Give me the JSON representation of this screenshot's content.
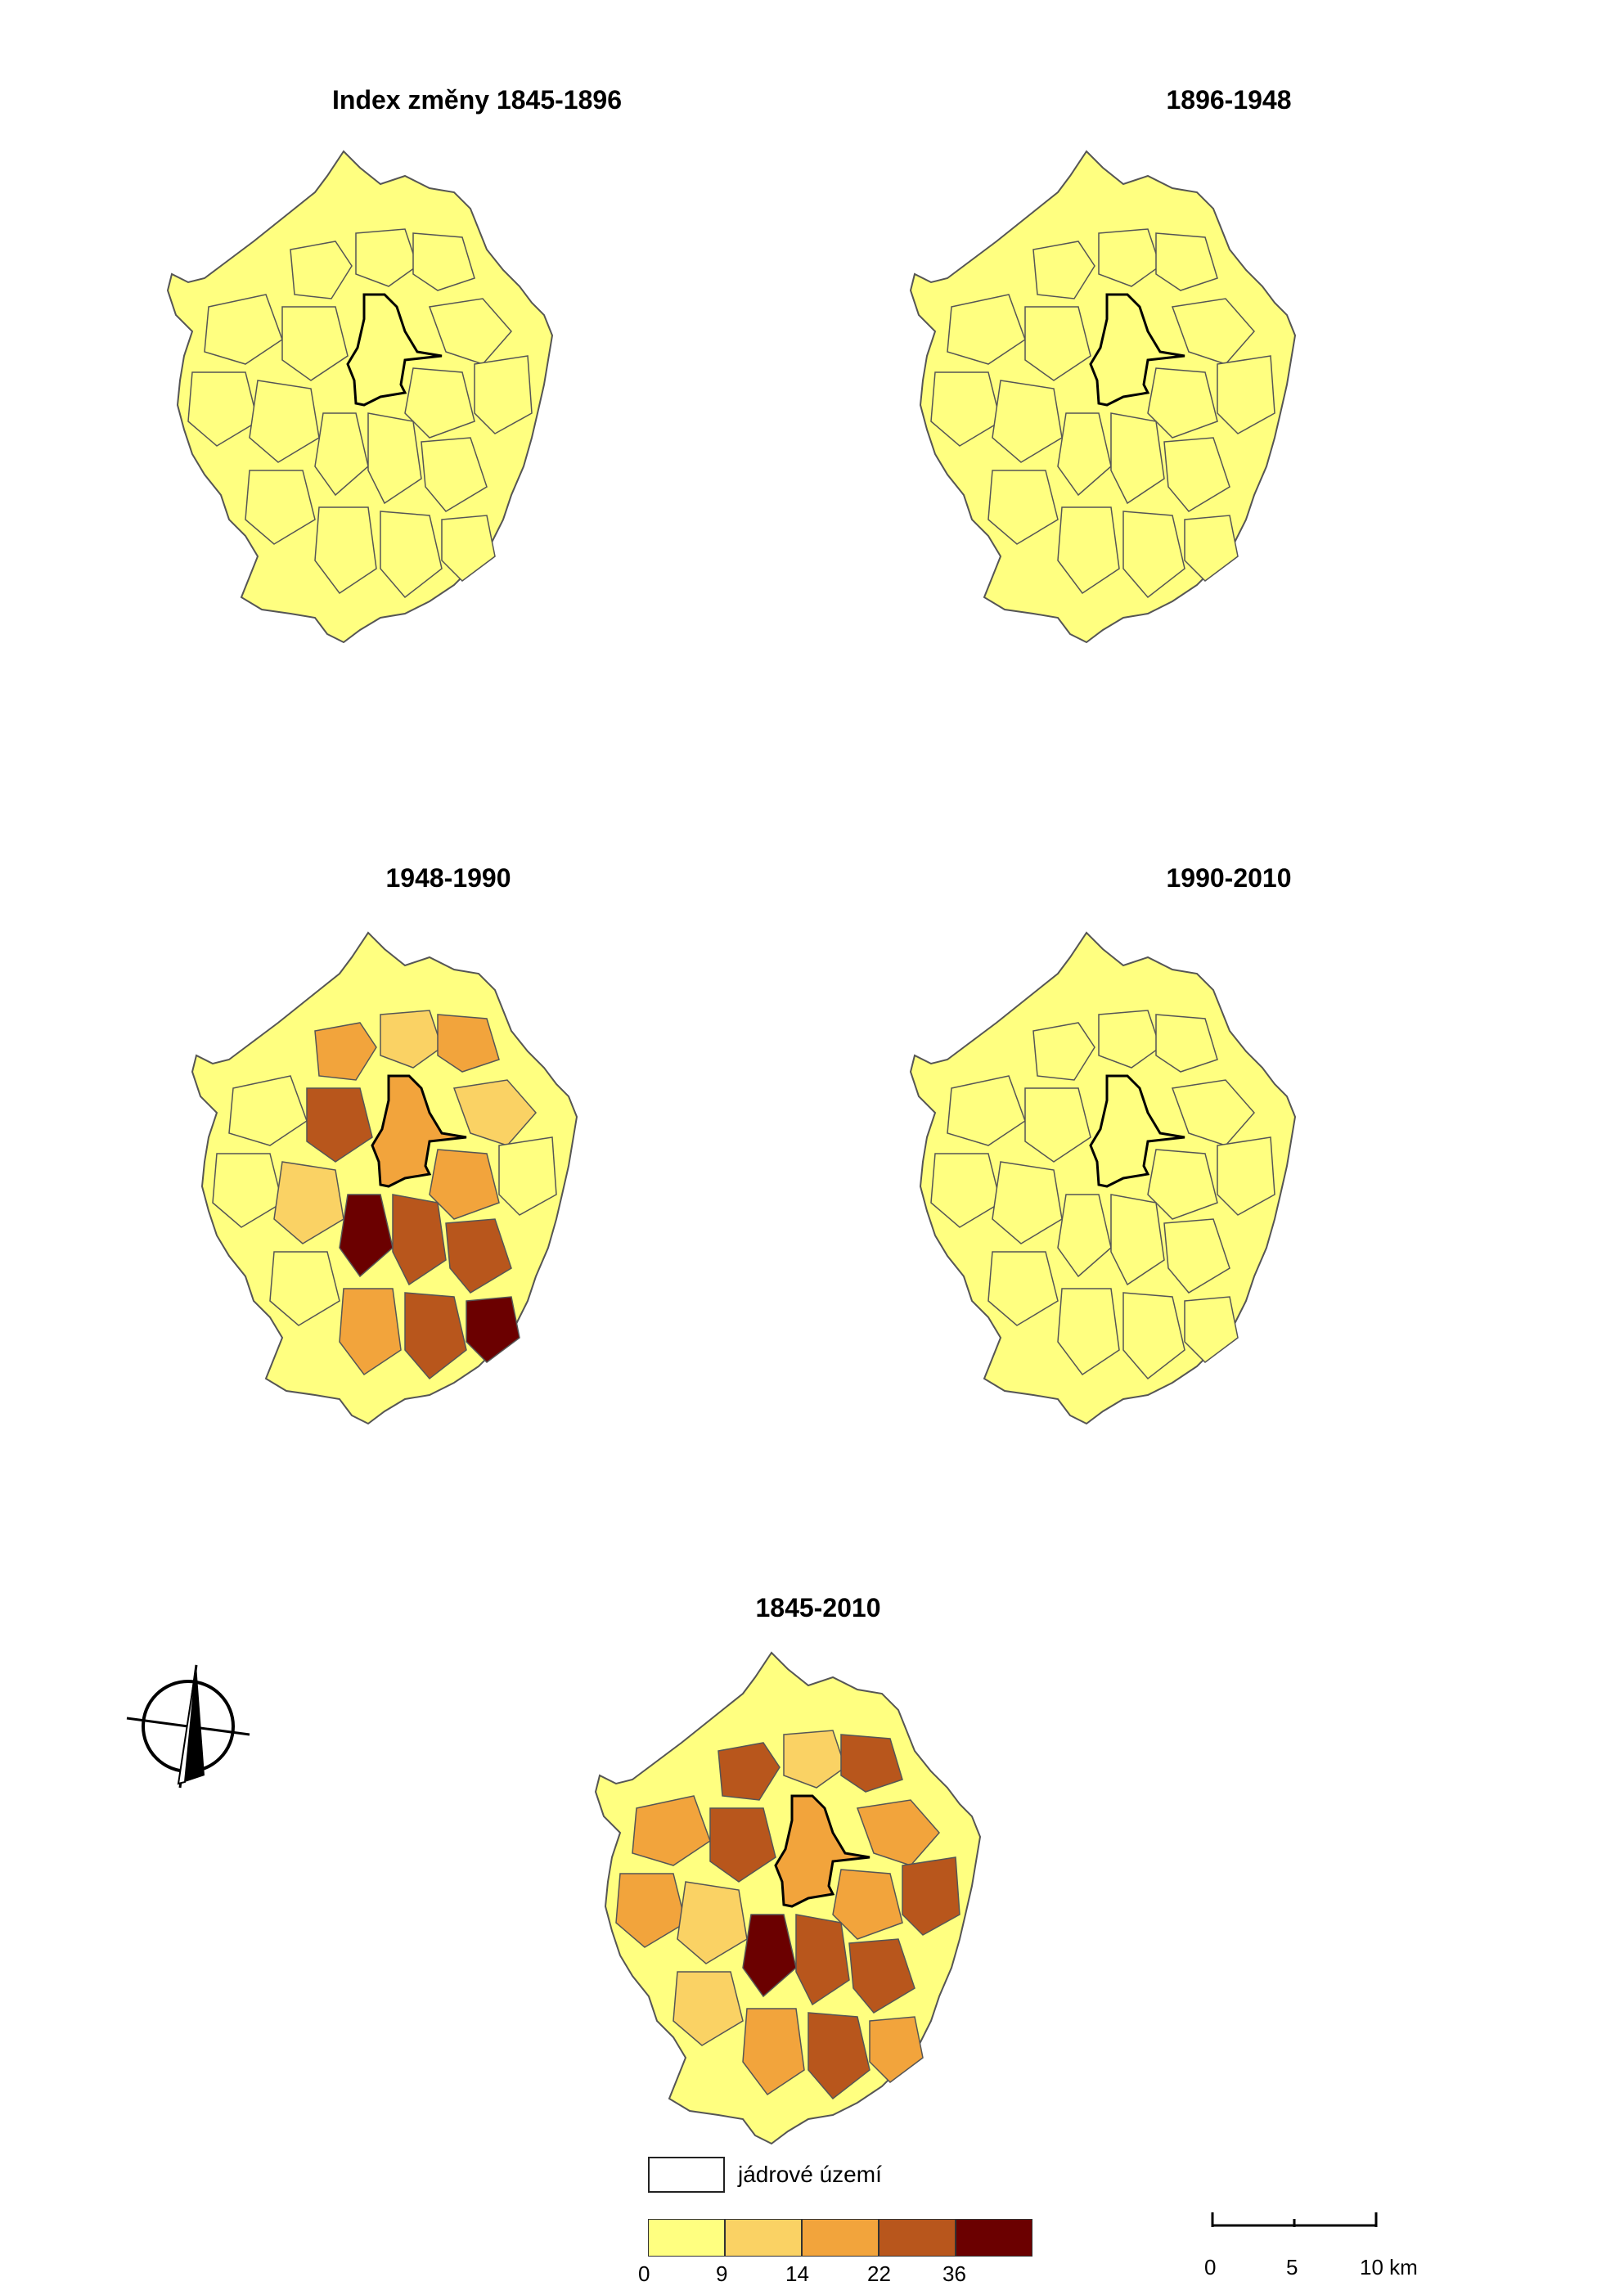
{
  "maps": [
    {
      "title": "Index změny 1845-1896"
    },
    {
      "title": "1896-1948"
    },
    {
      "title": "1948-1990"
    },
    {
      "title": "1990-2010"
    },
    {
      "title": "1845-2010"
    }
  ],
  "legend": {
    "core_label": "jádrové území",
    "class_colors": [
      "#ffff80",
      "#fad264",
      "#f2a43c",
      "#b8561c",
      "#6b0000"
    ],
    "breaks": [
      "0",
      "9",
      "14",
      "22",
      "36"
    ]
  },
  "scale": {
    "ticks": [
      "0",
      "5",
      "10 km"
    ]
  },
  "colors": {
    "boundary": "#555555",
    "core_outline": "#000000"
  },
  "icons": {
    "north_arrow": "north-arrow-icon"
  }
}
